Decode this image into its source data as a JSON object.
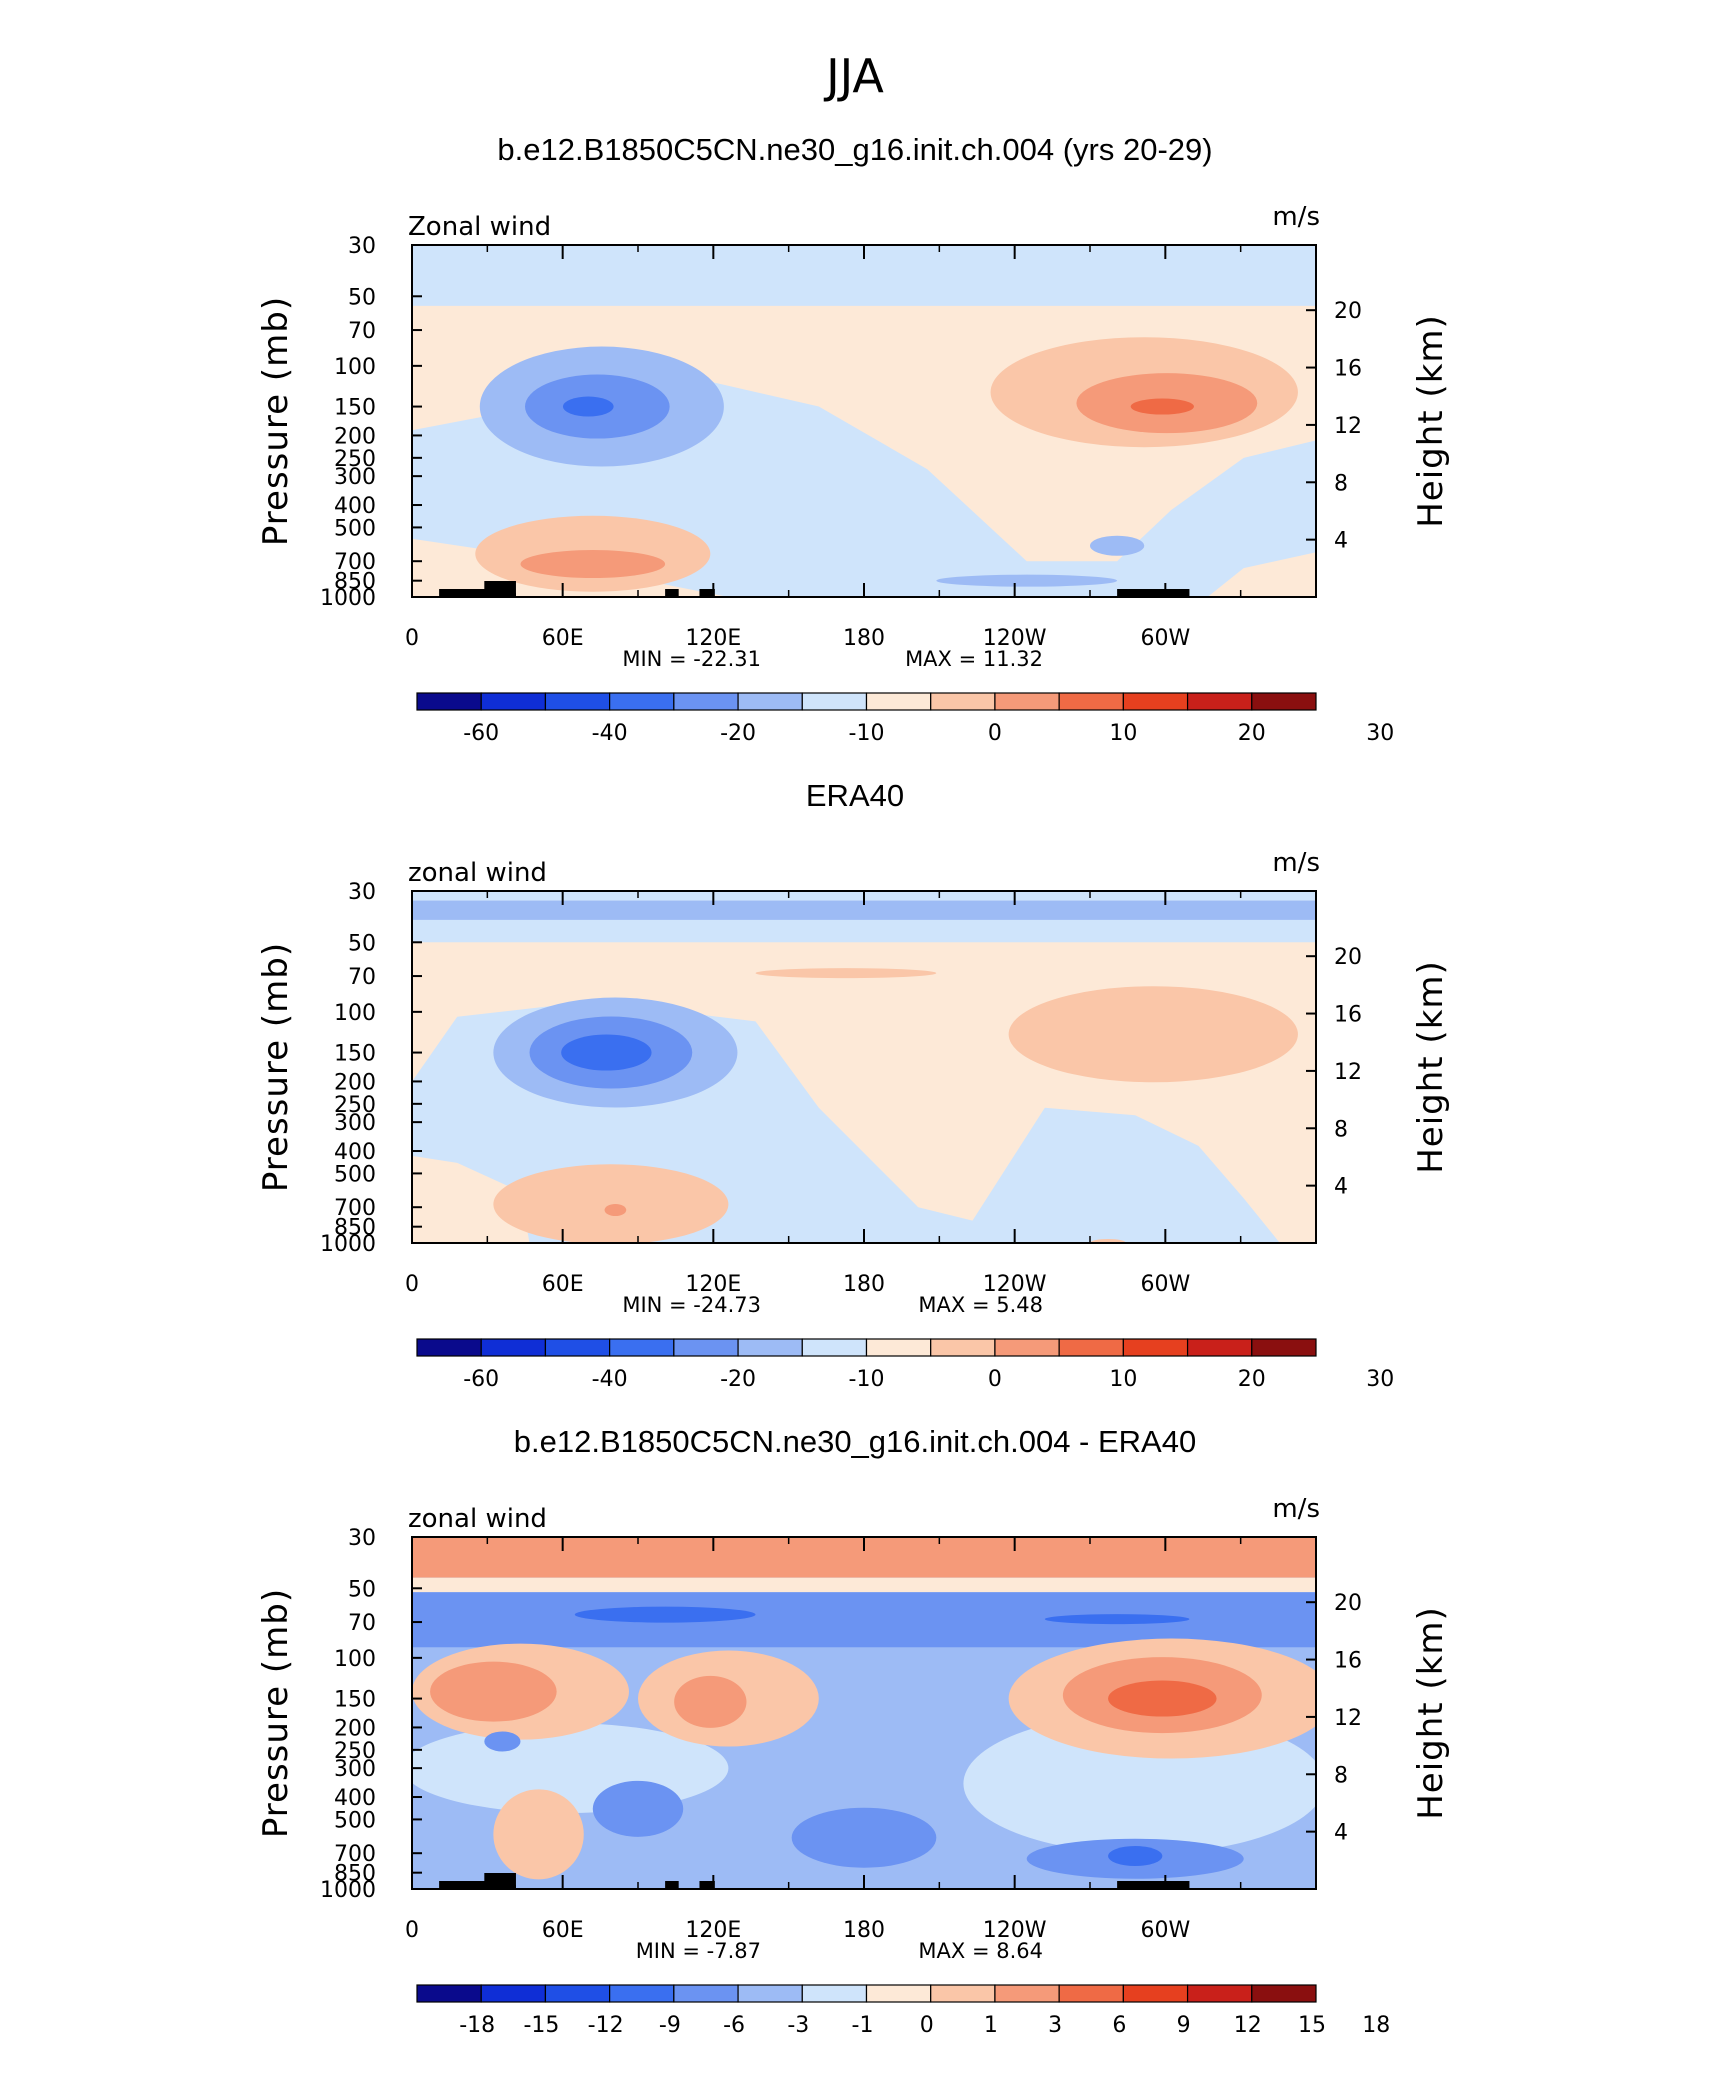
{
  "figure_title": "JJA",
  "colors": {
    "palette": [
      "#0a0a8c",
      "#0f2ed6",
      "#1f4fe6",
      "#3a6ff0",
      "#6b93f2",
      "#9dbbf5",
      "#cfe4fb",
      "#fde9d7",
      "#fac6a8",
      "#f59a79",
      "#ef6a45",
      "#e6401f",
      "#c9201a",
      "#8a0f0f"
    ],
    "topography": "#000000"
  },
  "chart_data": [
    {
      "type": "heatmap",
      "title": "b.e12.B1850C5CN.ne30_g16.init.ch.004 (yrs 20-29)",
      "left_label": "Zonal wind",
      "units": "m/s",
      "ylabel": "Pressure (mb)",
      "y2label": "Height (km)",
      "x_ticks": [
        "0",
        "60E",
        "120E",
        "180",
        "120W",
        "60W"
      ],
      "y_ticks": [
        "30",
        "50",
        "70",
        "100",
        "150",
        "200",
        "250",
        "300",
        "400",
        "500",
        "700",
        "850",
        "1000"
      ],
      "y2_ticks": [
        "20",
        "16",
        "12",
        "8",
        "4"
      ],
      "min_label": "MIN = -22.31",
      "max_label": "MAX = 11.32",
      "min": -22.31,
      "max": 11.32,
      "colorbar_levels": [
        "-60",
        "-40",
        "-20",
        "-10",
        "0",
        "10",
        "20",
        "30"
      ]
    },
    {
      "type": "heatmap",
      "title": "ERA40",
      "left_label": "zonal wind",
      "units": "m/s",
      "ylabel": "Pressure (mb)",
      "y2label": "Height (km)",
      "x_ticks": [
        "0",
        "60E",
        "120E",
        "180",
        "120W",
        "60W"
      ],
      "y_ticks": [
        "30",
        "50",
        "70",
        "100",
        "150",
        "200",
        "250",
        "300",
        "400",
        "500",
        "700",
        "850",
        "1000"
      ],
      "y2_ticks": [
        "20",
        "16",
        "12",
        "8",
        "4"
      ],
      "min_label": "MIN = -24.73",
      "max_label": "MAX = 5.48",
      "min": -24.73,
      "max": 5.48,
      "colorbar_levels": [
        "-60",
        "-40",
        "-20",
        "-10",
        "0",
        "10",
        "20",
        "30"
      ]
    },
    {
      "type": "heatmap",
      "title": "b.e12.B1850C5CN.ne30_g16.init.ch.004 - ERA40",
      "left_label": "zonal wind",
      "units": "m/s",
      "ylabel": "Pressure (mb)",
      "y2label": "Height (km)",
      "x_ticks": [
        "0",
        "60E",
        "120E",
        "180",
        "120W",
        "60W"
      ],
      "y_ticks": [
        "30",
        "50",
        "70",
        "100",
        "150",
        "200",
        "250",
        "300",
        "400",
        "500",
        "700",
        "850",
        "1000"
      ],
      "y2_ticks": [
        "20",
        "16",
        "12",
        "8",
        "4"
      ],
      "min_label": "MIN = -7.87",
      "max_label": "MAX = 8.64",
      "min": -7.87,
      "max": 8.64,
      "colorbar_levels": [
        "-18",
        "-15",
        "-12",
        "-9",
        "-6",
        "-3",
        "-1",
        "0",
        "1",
        "3",
        "6",
        "9",
        "12",
        "15",
        "18"
      ]
    }
  ]
}
